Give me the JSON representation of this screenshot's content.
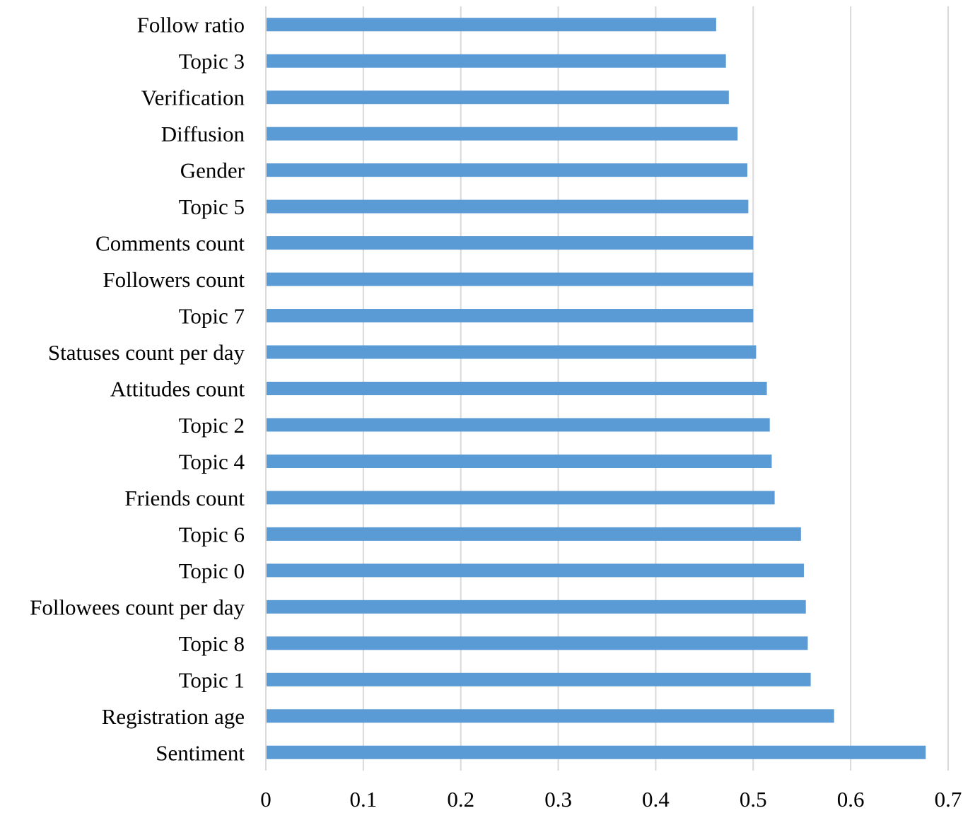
{
  "chart_data": {
    "type": "bar",
    "orientation": "horizontal",
    "title": "",
    "xlabel": "",
    "ylabel": "",
    "xlim": [
      0,
      0.7
    ],
    "x_ticks": [
      0,
      0.1,
      0.2,
      0.3,
      0.4,
      0.5,
      0.6,
      0.7
    ],
    "grid": true,
    "legend": "none",
    "categories": [
      "Follow ratio",
      "Topic 3",
      "Verification",
      "Diffusion",
      "Gender",
      "Topic 5",
      "Comments count",
      "Followers count",
      "Topic 7",
      "Statuses count per day",
      "Attitudes count",
      "Topic 2",
      "Topic 4",
      "Friends count",
      "Topic 6",
      "Topic 0",
      "Followees count per day",
      "Topic 8",
      "Topic 1",
      "Registration age",
      "Sentiment"
    ],
    "values": [
      0.462,
      0.472,
      0.475,
      0.484,
      0.494,
      0.495,
      0.5,
      0.5,
      0.5,
      0.503,
      0.514,
      0.517,
      0.519,
      0.522,
      0.549,
      0.552,
      0.554,
      0.556,
      0.559,
      0.583,
      0.677
    ],
    "colors": {
      "bar": "#5b9bd5",
      "grid": "#d9d9d9",
      "axis": "#d9d9d9"
    }
  }
}
